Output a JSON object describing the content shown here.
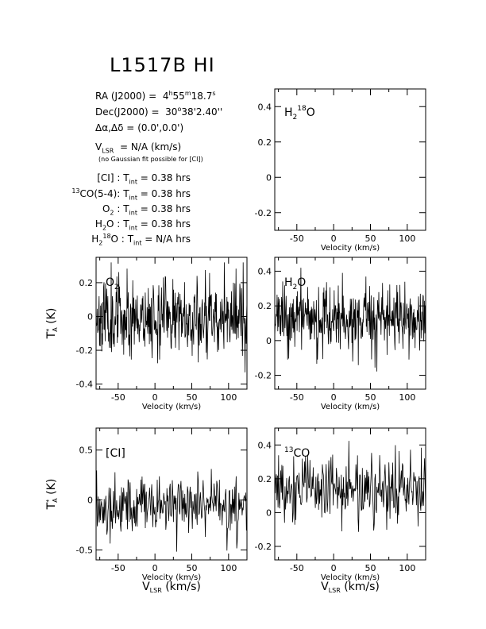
{
  "title": "L1517B HI",
  "info": {
    "ra_label": "RA (J2000) =",
    "ra_value": {
      "h": "4",
      "hs": "h",
      "m": "55",
      "ms": "m",
      "s": "18.7",
      "ss": "s"
    },
    "dec_label": "Dec(J2000) =",
    "dec_value": {
      "d": "30",
      "ds": "o",
      "rest": "38'2.40''"
    },
    "offset_label": "Δα,Δδ =",
    "offset_value": "(0.0',0.0')",
    "vlsr_prefix": "V",
    "vlsr_sub": "LSR",
    "vlsr_value": "= N/A  (km/s)",
    "note": "(no Gaussian fit possible for [CI])",
    "integrations": [
      {
        "line": "[CI] :",
        "tint": "= 0.38 hrs"
      },
      {
        "line_sup": "13",
        "line": "CO(5-4):",
        "tint": "= 0.38 hrs"
      },
      {
        "line": "O",
        "line_sub": "2",
        "line_after": " :",
        "tint": "= 0.38 hrs"
      },
      {
        "line": "H",
        "line_sub": "2",
        "line_after": "O :",
        "tint": "= 0.38 hrs"
      },
      {
        "line": "H",
        "line_sub": "2",
        "line_sup": "18",
        "line_after": "O :",
        "tint": "= N/A  hrs"
      }
    ],
    "tint_prefix": "T",
    "tint_sub": "int"
  },
  "chart_data": [
    {
      "type": "line",
      "id": "h218o",
      "label": "H",
      "label_sub": "2",
      "label_sup": "18",
      "label_after": "O",
      "xlabel": "Velocity (km/s)",
      "ylabel": "",
      "xlim": [
        -80,
        125
      ],
      "ylim": [
        -0.3,
        0.5
      ],
      "xticks": [
        -50,
        0,
        50,
        100
      ],
      "yticks": [
        -0.2,
        0,
        0.2,
        0.4
      ],
      "ytick_labels": [
        "-0.2",
        "0",
        "0.2",
        "0.4"
      ],
      "series": []
    },
    {
      "type": "line",
      "id": "o2",
      "label": "O",
      "label_sub": "2",
      "xlabel": "Velocity (km/s)",
      "ylabel": "T",
      "xlim": [
        -80,
        125
      ],
      "ylim": [
        -0.43,
        0.35
      ],
      "xticks": [
        -50,
        0,
        50,
        100
      ],
      "yticks": [
        -0.4,
        -0.2,
        0,
        0.2
      ],
      "ytick_labels": [
        "-0.4",
        "-0.2",
        "0",
        "0.2"
      ],
      "noise": {
        "mean": 0.0,
        "sigma": 0.11,
        "seed": 11,
        "npts": 400,
        "clip": [
          -0.38,
          0.32
        ]
      }
    },
    {
      "type": "line",
      "id": "h2o",
      "label": "H",
      "label_sub": "2",
      "label_after": "O",
      "xlabel": "Velocity (km/s)",
      "ylabel": "",
      "xlim": [
        -80,
        125
      ],
      "ylim": [
        -0.28,
        0.48
      ],
      "xticks": [
        -50,
        0,
        50,
        100
      ],
      "yticks": [
        -0.2,
        0,
        0.2,
        0.4
      ],
      "ytick_labels": [
        "-0.2",
        "0",
        "0.2",
        "0.4"
      ],
      "noise": {
        "mean": 0.12,
        "sigma": 0.09,
        "seed": 23,
        "npts": 400,
        "clip": [
          -0.2,
          0.42
        ]
      }
    },
    {
      "type": "line",
      "id": "ci",
      "label": "[CI]",
      "xlabel": "Velocity (km/s)",
      "ylabel": "T",
      "xlim": [
        -80,
        125
      ],
      "ylim": [
        -0.6,
        0.72
      ],
      "xticks": [
        -50,
        0,
        50,
        100
      ],
      "yticks": [
        -0.5,
        0,
        0.5
      ],
      "ytick_labels": [
        "-0.5",
        "0",
        "0.5"
      ],
      "noise": {
        "mean": -0.05,
        "sigma": 0.14,
        "seed": 37,
        "npts": 280,
        "clip": [
          -0.55,
          0.62
        ]
      }
    },
    {
      "type": "line",
      "id": "co13",
      "label": "CO",
      "label_sup": "13",
      "xlabel": "Velocity (km/s)",
      "ylabel": "",
      "xlim": [
        -80,
        125
      ],
      "ylim": [
        -0.28,
        0.5
      ],
      "xticks": [
        -50,
        0,
        50,
        100
      ],
      "yticks": [
        -0.2,
        0,
        0.2,
        0.4
      ],
      "ytick_labels": [
        "-0.2",
        "0",
        "0.2",
        "0.4"
      ],
      "noise": {
        "mean": 0.14,
        "sigma": 0.1,
        "seed": 53,
        "npts": 280,
        "clip": [
          -0.25,
          0.44
        ]
      }
    }
  ],
  "vlsr_axis": {
    "prefix": "V",
    "sub": "LSR",
    "suffix": " (km/s)"
  },
  "ta_label": {
    "prefix": "T",
    "sup": "*",
    "sub": "A",
    "suffix": " (K)"
  }
}
